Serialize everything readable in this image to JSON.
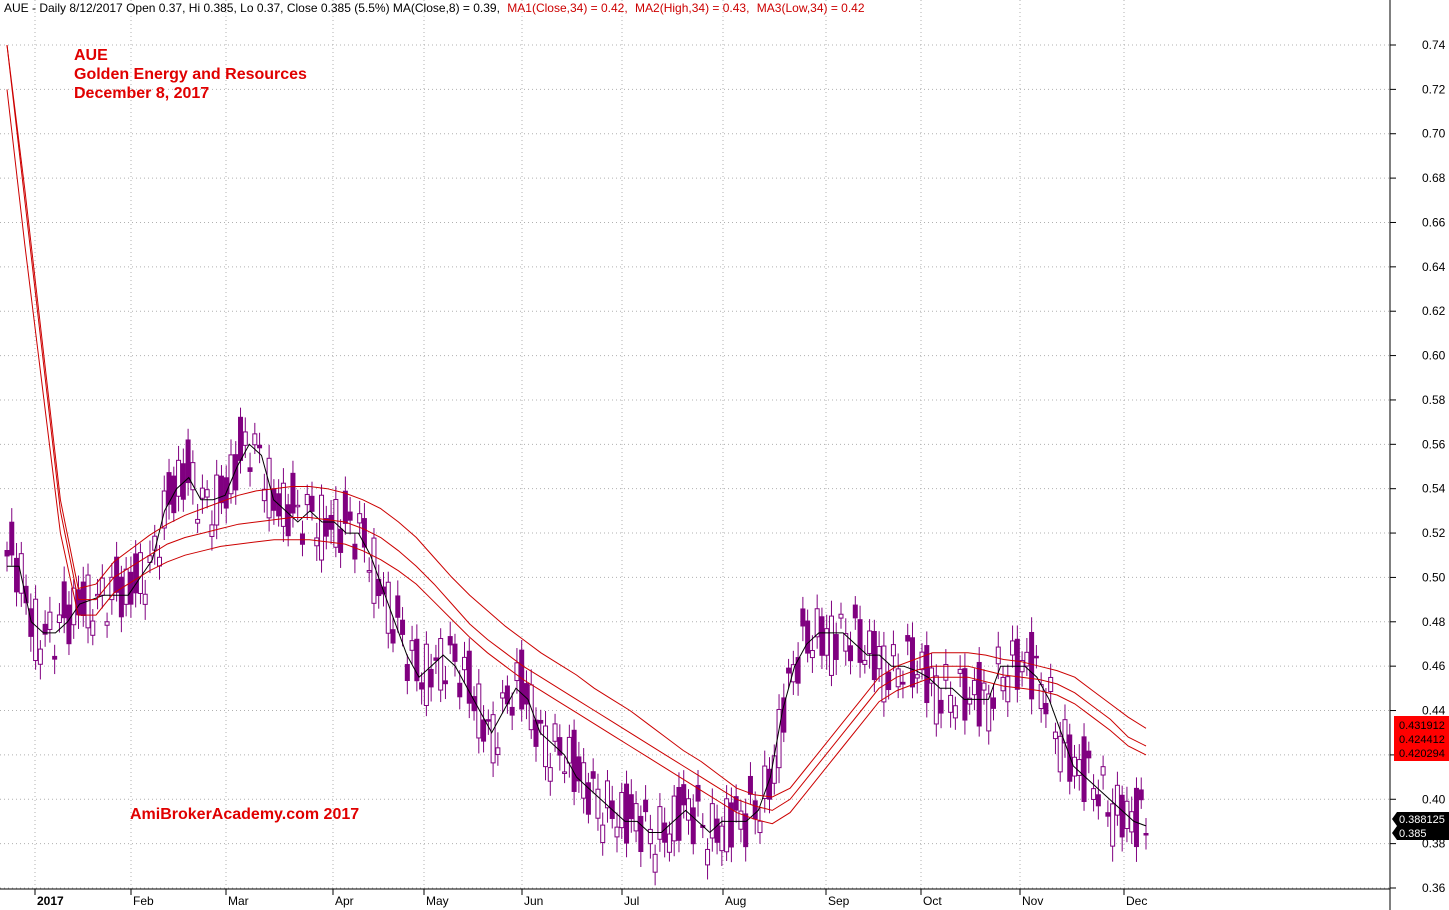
{
  "header": {
    "symbol_info": "AUE - Daily 8/12/2017 Open 0.37, Hi 0.385, Lo 0.37, Close 0.385 (5.5%) MA(Close,8) = 0.39,",
    "ma1": "MA1(Close,34) = 0.42,",
    "ma2": "MA2(High,34) = 0.43,",
    "ma3": "MA3(Low,34) = 0.42"
  },
  "titles": {
    "line1": "AUE",
    "line2": "Golden Energy and Resources",
    "line3": "December 8, 2017"
  },
  "watermark": "AmiBrokerAcademy.com  2017",
  "colors": {
    "candle": "#800080",
    "ma_short": "#000000",
    "ma_bands": "#cc0000",
    "title_text": "#e00000",
    "grid": "#b0b0b0",
    "tag_red": "#ff0000",
    "tag_black": "#000000"
  },
  "price_tags": {
    "red": [
      "0.431912",
      "0.424412",
      "0.420294"
    ],
    "black": [
      "0.388125",
      "0.385"
    ]
  },
  "chart_data": {
    "type": "candlestick",
    "y_axis": {
      "min": 0.36,
      "max": 0.74,
      "ticks": [
        "0.74",
        "0.72",
        "0.70",
        "0.68",
        "0.66",
        "0.64",
        "0.62",
        "0.60",
        "0.58",
        "0.56",
        "0.54",
        "0.52",
        "0.50",
        "0.48",
        "0.46",
        "0.44",
        "0.42",
        "0.40",
        "0.38",
        "0.36"
      ]
    },
    "x_axis": {
      "labels": [
        "2017",
        "Feb",
        "Mar",
        "Apr",
        "May",
        "Jun",
        "Jul",
        "Aug",
        "Sep",
        "Oct",
        "Nov",
        "Dec"
      ]
    },
    "grid": true,
    "series": [
      {
        "name": "MA(Close,8)",
        "values": [
          0.505,
          0.505,
          0.48,
          0.475,
          0.475,
          0.48,
          0.488,
          0.49,
          0.492,
          0.492,
          0.492,
          0.5,
          0.508,
          0.53,
          0.54,
          0.545,
          0.535,
          0.535,
          0.537,
          0.55,
          0.56,
          0.555,
          0.535,
          0.53,
          0.525,
          0.53,
          0.525,
          0.525,
          0.52,
          0.52,
          0.51,
          0.495,
          0.48,
          0.465,
          0.455,
          0.46,
          0.465,
          0.46,
          0.45,
          0.44,
          0.43,
          0.44,
          0.45,
          0.445,
          0.43,
          0.425,
          0.42,
          0.41,
          0.405,
          0.4,
          0.395,
          0.39,
          0.39,
          0.385,
          0.385,
          0.39,
          0.395,
          0.39,
          0.385,
          0.39,
          0.39,
          0.39,
          0.395,
          0.41,
          0.44,
          0.46,
          0.47,
          0.475,
          0.475,
          0.475,
          0.47,
          0.465,
          0.465,
          0.46,
          0.46,
          0.458,
          0.455,
          0.45,
          0.45,
          0.445,
          0.445,
          0.445,
          0.46,
          0.46,
          0.46,
          0.455,
          0.445,
          0.43,
          0.415,
          0.41,
          0.405,
          0.4,
          0.395,
          0.39,
          0.388
        ]
      },
      {
        "name": "MA1(Close,34)",
        "values": [
          0.74,
          0.67,
          0.6,
          0.53,
          0.49,
          0.49,
          0.5,
          0.505,
          0.51,
          0.515,
          0.518,
          0.52,
          0.522,
          0.524,
          0.525,
          0.526,
          0.527,
          0.527,
          0.526,
          0.525,
          0.522,
          0.518,
          0.512,
          0.505,
          0.497,
          0.488,
          0.479,
          0.472,
          0.466,
          0.46,
          0.455,
          0.45,
          0.445,
          0.44,
          0.435,
          0.43,
          0.425,
          0.42,
          0.415,
          0.41,
          0.405,
          0.4,
          0.397,
          0.395,
          0.4,
          0.41,
          0.42,
          0.43,
          0.44,
          0.45,
          0.455,
          0.458,
          0.46,
          0.46,
          0.46,
          0.458,
          0.456,
          0.455,
          0.454,
          0.452,
          0.448,
          0.442,
          0.436,
          0.428,
          0.424
        ]
      },
      {
        "name": "MA2(High,34)",
        "values": [
          0.74,
          0.675,
          0.605,
          0.535,
          0.495,
          0.497,
          0.507,
          0.513,
          0.519,
          0.524,
          0.528,
          0.531,
          0.534,
          0.537,
          0.539,
          0.54,
          0.541,
          0.541,
          0.54,
          0.538,
          0.535,
          0.531,
          0.525,
          0.518,
          0.509,
          0.5,
          0.492,
          0.485,
          0.478,
          0.472,
          0.466,
          0.461,
          0.456,
          0.45,
          0.445,
          0.44,
          0.434,
          0.428,
          0.422,
          0.417,
          0.411,
          0.405,
          0.402,
          0.401,
          0.405,
          0.415,
          0.425,
          0.435,
          0.445,
          0.455,
          0.46,
          0.463,
          0.466,
          0.466,
          0.466,
          0.465,
          0.463,
          0.462,
          0.46,
          0.458,
          0.455,
          0.449,
          0.443,
          0.437,
          0.432
        ]
      },
      {
        "name": "MA3(Low,34)",
        "values": [
          0.72,
          0.65,
          0.585,
          0.52,
          0.483,
          0.483,
          0.493,
          0.498,
          0.503,
          0.507,
          0.51,
          0.512,
          0.514,
          0.515,
          0.516,
          0.517,
          0.517,
          0.517,
          0.516,
          0.515,
          0.512,
          0.508,
          0.503,
          0.497,
          0.489,
          0.481,
          0.473,
          0.466,
          0.46,
          0.454,
          0.449,
          0.444,
          0.439,
          0.434,
          0.429,
          0.424,
          0.419,
          0.414,
          0.409,
          0.404,
          0.399,
          0.394,
          0.391,
          0.389,
          0.394,
          0.404,
          0.414,
          0.424,
          0.434,
          0.444,
          0.449,
          0.452,
          0.455,
          0.455,
          0.455,
          0.453,
          0.451,
          0.45,
          0.449,
          0.447,
          0.443,
          0.437,
          0.431,
          0.424,
          0.42
        ]
      }
    ]
  }
}
